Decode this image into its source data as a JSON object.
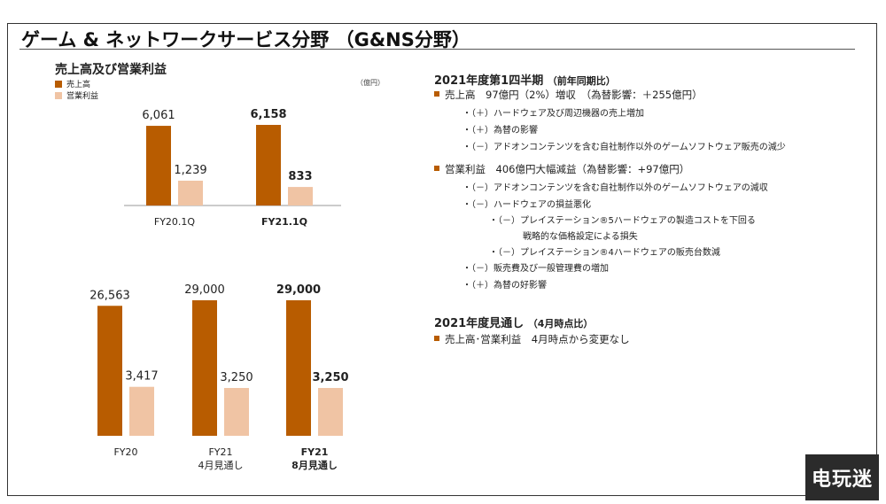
{
  "slide": {
    "title": "ゲーム & ネットワークサービス分野 （G&NS分野）"
  },
  "colors": {
    "sales": "#b85c00",
    "profit": "#f0c4a4",
    "axis": "#999999"
  },
  "chart_data": [
    {
      "type": "bar",
      "title": "売上高及び営業利益",
      "unit": "（億円）",
      "categories": [
        [
          "FY20.1Q"
        ],
        [
          "FY21.1Q"
        ]
      ],
      "bold_categories": [
        false,
        true
      ],
      "series": [
        {
          "name": "売上高",
          "values": [
            6061,
            6158
          ],
          "labels": [
            "6,061",
            "6,158"
          ]
        },
        {
          "name": "営業利益",
          "values": [
            1239,
            833
          ],
          "labels": [
            "1,239",
            "833"
          ]
        }
      ]
    },
    {
      "type": "bar",
      "categories": [
        [
          "FY20"
        ],
        [
          "FY21",
          "4月見通し"
        ],
        [
          "FY21",
          "8月見通し"
        ]
      ],
      "bold_categories": [
        false,
        false,
        true
      ],
      "series": [
        {
          "name": "売上高",
          "values": [
            26563,
            29000,
            29000
          ],
          "labels": [
            "26,563",
            "29,000",
            "29,000"
          ]
        },
        {
          "name": "営業利益",
          "values": [
            3417,
            3250,
            3250
          ],
          "labels": [
            "3,417",
            "3,250",
            "3,250"
          ]
        }
      ]
    }
  ],
  "right": {
    "q1_heading": "2021年度第1四半期",
    "q1_heading_note": "（前年同期比）",
    "sales_line": "売上高　97億円（2%）増収　（為替影響：＋255億円）",
    "sales_items": [
      "・（＋）ハードウェア及び周辺機器の売上増加",
      "・（＋）為替の影響",
      "・（－）アドオンコンテンツを含む自社制作以外のゲームソフトウェア販売の減少"
    ],
    "profit_line": "営業利益　406億円大幅減益（為替影響：+97億円）",
    "profit_items": [
      "・（－）アドオンコンテンツを含む自社制作以外のゲームソフトウェアの減収",
      "・（－）ハードウェアの損益悪化"
    ],
    "profit_subitems": [
      "・（－）プレイステーション®5ハードウェアの製造コストを下回る",
      "戦略的な価格設定による損失",
      "・（－）プレイステーション®4ハードウェアの販売台数減"
    ],
    "profit_items2": [
      "・（－）販売費及び一般管理費の増加",
      "・（＋）為替の好影響"
    ],
    "fy_heading": "2021年度見通し",
    "fy_heading_note": "（4月時点比）",
    "fy_line": "売上高･営業利益　4月時点から変更なし"
  },
  "logo": {
    "text": "电玩迷"
  }
}
